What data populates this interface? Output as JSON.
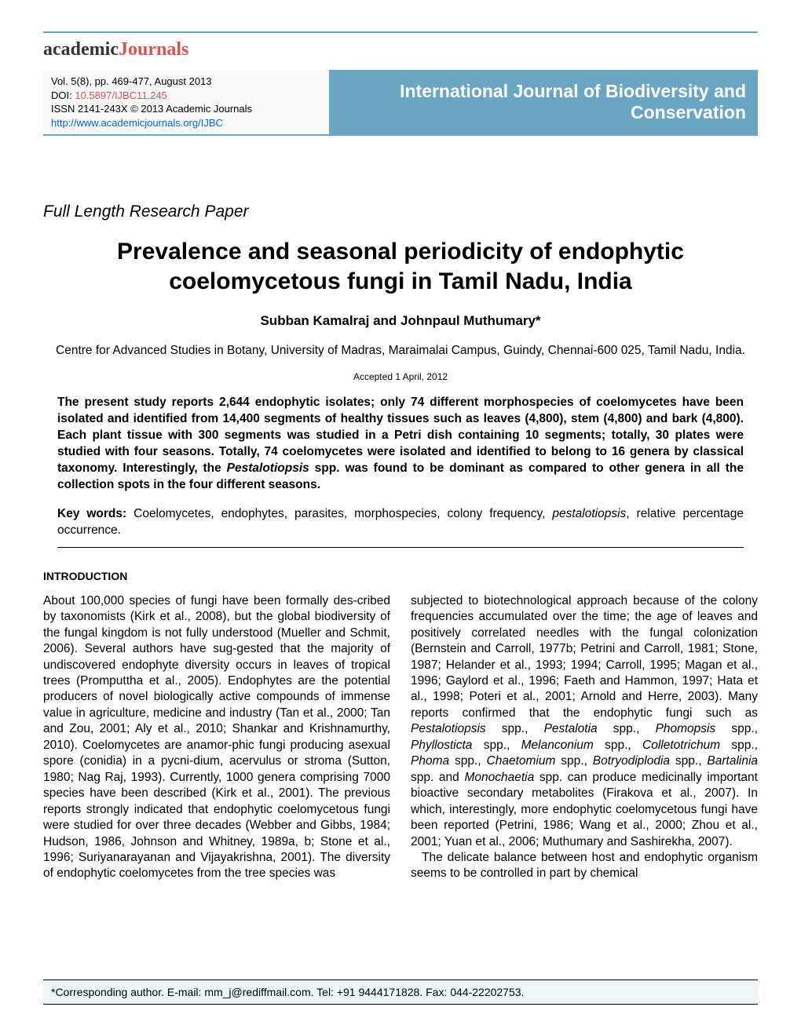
{
  "logo": {
    "part1": "academic",
    "part2": "Journals"
  },
  "meta": {
    "vol": "Vol. 5(8), pp. 469-477, August 2013",
    "doi_label": "DOI: ",
    "doi": "10.5897/IJBC11.245",
    "issn": "ISSN 2141-243X © 2013 Academic Journals",
    "url": "http://www.academicjournals.org/IJBC"
  },
  "journal_title": "International Journal of Biodiversity and Conservation",
  "paper_type": "Full Length Research Paper",
  "title": "Prevalence and seasonal periodicity of endophytic coelomycetous fungi in Tamil Nadu, India",
  "authors": "Subban Kamalraj and Johnpaul Muthumary*",
  "affiliation": "Centre for Advanced Studies in Botany, University of Madras, Maraimalai Campus, Guindy, Chennai-600 025, Tamil Nadu, India.",
  "accepted": "Accepted 1 April, 2012",
  "abstract_p1": "The present study reports 2,644 endophytic isolates; only 74 different morphospecies of coelomycetes have been isolated and identified from 14,400 segments of healthy tissues such as leaves (4,800), stem (4,800) and bark (4,800). Each plant tissue with 300 segments was studied in a Petri dish containing 10 segments; totally, 30 plates were studied with four seasons. Totally, 74 coelomycetes were isolated and identified to belong to 16 genera by classical taxonomy. Interestingly, the ",
  "abstract_pest": "Pestalotiopsis",
  "abstract_p2": " spp. was found to be dominant as compared to other genera in all the collection spots in the four different seasons.",
  "kw_label": "Key words: ",
  "kw_text1": "Coelomycetes, endophytes, parasites, morphospecies, colony frequency, ",
  "kw_italic": "pestalotiopsis",
  "kw_text2": ", relative percentage occurrence.",
  "intro_heading": "INTRODUCTION",
  "col1": "About 100,000 species of fungi have been formally des-cribed by taxonomists (Kirk et al., 2008), but the global biodiversity of the fungal kingdom is not fully understood (Mueller and Schmit, 2006). Several authors have sug-gested that the majority of undiscovered endophyte diversity occurs in leaves of tropical trees (Promputtha et al., 2005). Endophytes are the potential producers of novel biologically active compounds of immense value in agriculture, medicine and industry (Tan et al., 2000; Tan and Zou, 2001; Aly et al., 2010; Shankar and Krishnamurthy, 2010). Coelomycetes are anamor-phic fungi producing asexual spore (conidia) in a pycni-dium, acervulus or stroma (Sutton, 1980; Nag Raj, 1993). Currently, 1000 genera comprising 7000 species have been described (Kirk et al., 2001). The previous reports strongly indicated that endophytic coelomycetous fungi were studied for over three decades (Webber and Gibbs, 1984; Hudson, 1986, Johnson and Whitney, 1989a, b; Stone et al., 1996; Suriyanarayanan and Vijayakrishna, 2001). The diversity of endophytic coelomycetes from the tree species was",
  "col2_p1": "subjected to biotechnological approach because of the colony frequencies accumulated over the time; the age of leaves and positively correlated needles with the fungal colonization (Bernstein and Carroll, 1977b; Petrini and Carroll, 1981; Stone, 1987; Helander et al., 1993; 1994; Carroll, 1995; Magan et al., 1996; Gaylord et al., 1996; Faeth and Hammon, 1997; Hata et al., 1998; Poteri et al., 2001; Arnold and Herre, 2003). Many reports confirmed that the endophytic fungi such as ",
  "genera": {
    "g1": "Pestalotiopsis",
    "s1": " spp., ",
    "g2": "Pestalotia",
    "s2": " spp., ",
    "g3": "Phomopsis",
    "s3": " spp., ",
    "g4": "Phyllosticta",
    "s4": " spp., ",
    "g5": "Melanconium",
    "s5": " spp., ",
    "g6": "Colletotrichum",
    "s6": " spp., ",
    "g7": "Phoma",
    "s7": " spp., ",
    "g8": "Chaetomium",
    "s8": " spp., ",
    "g9": "Botryodiplodia",
    "s9": " spp., ",
    "g10": "Bartalinia",
    "s10": " spp. and ",
    "g11": "Monochaetia"
  },
  "col2_p2": " spp. can produce medicinally important bioactive secondary metabolites (Firakova et al., 2007). In which, interestingly, more endophytic coelomycetous fungi have been reported (Petrini, 1986; Wang et al., 2000; Zhou et al., 2001; Yuan et al., 2006; Muthumary and Sashirekha, 2007).",
  "col2_p3": "The delicate balance between host and endophytic organism seems to be controlled in part by chemical",
  "footer": "*Corresponding author. E-mail: mm_j@rediffmail.com. Tel: +91 9444171828. Fax: 044-22202753.",
  "colors": {
    "accent_blue": "#6ba5c4",
    "accent_red": "#d9534f",
    "link_blue": "#0066cc",
    "footer_bg": "#eef5f9"
  },
  "fonts": {
    "body": 15.5,
    "title": 30,
    "journal": 23
  }
}
